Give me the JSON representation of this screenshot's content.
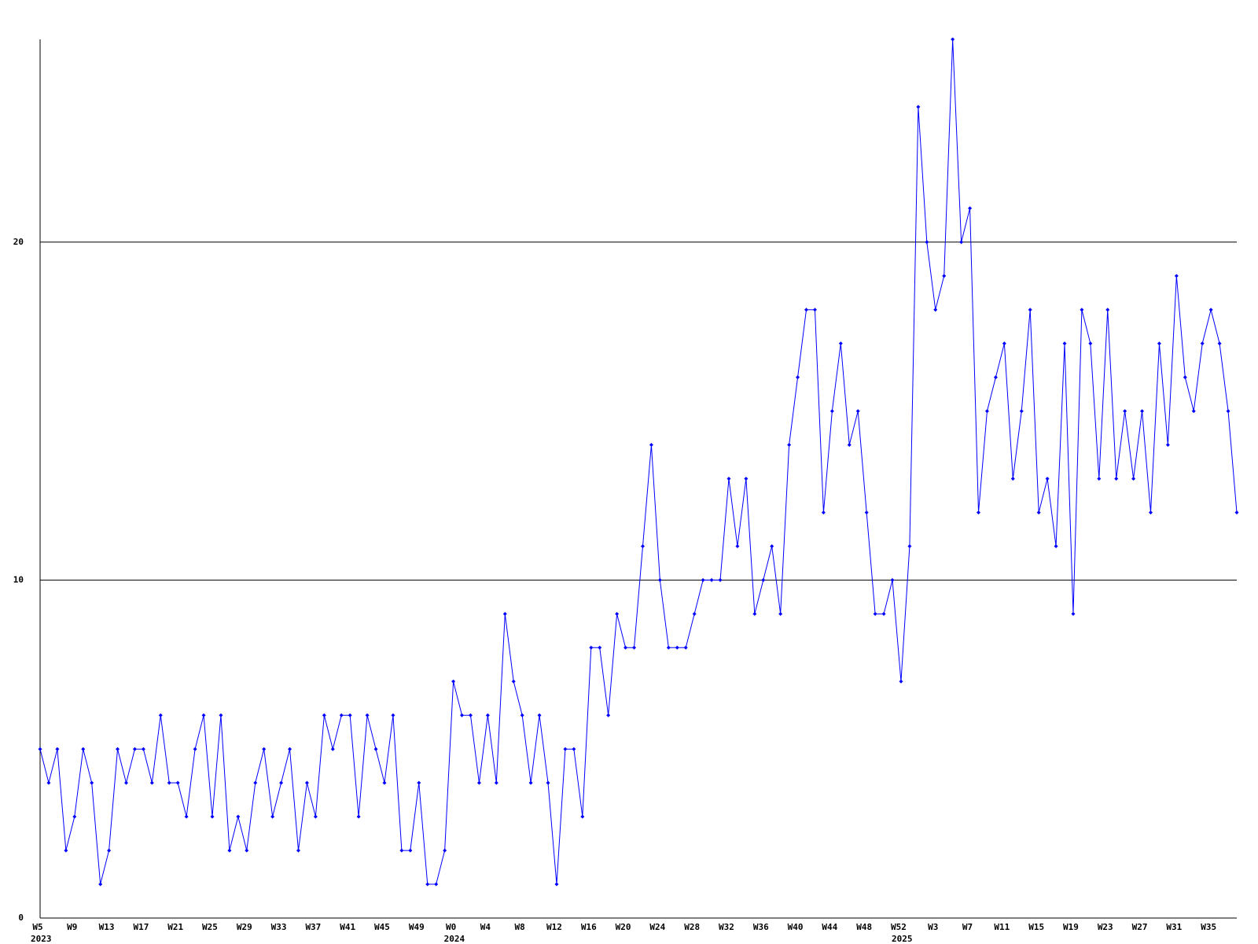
{
  "chart_data": {
    "type": "line",
    "color": "#0000ff",
    "ylim": [
      0,
      26
    ],
    "yticks": [
      0,
      10,
      20
    ],
    "grid": true,
    "categories": [
      "W5",
      null,
      null,
      null,
      "W9",
      null,
      null,
      null,
      "W13",
      null,
      null,
      null,
      "W17",
      null,
      null,
      null,
      "W21",
      null,
      null,
      null,
      "W25",
      null,
      null,
      null,
      "W29",
      null,
      null,
      null,
      "W33",
      null,
      null,
      null,
      "W37",
      null,
      null,
      null,
      "W41",
      null,
      null,
      null,
      "W45",
      null,
      null,
      null,
      "W49",
      null,
      null,
      null,
      "W0",
      null,
      null,
      null,
      "W4",
      null,
      null,
      null,
      "W8",
      null,
      null,
      null,
      "W12",
      null,
      null,
      null,
      "W16",
      null,
      null,
      null,
      "W20",
      null,
      null,
      null,
      "W24",
      null,
      null,
      null,
      "W28",
      null,
      null,
      null,
      "W32",
      null,
      null,
      null,
      "W36",
      null,
      null,
      null,
      "W40",
      null,
      null,
      null,
      "W44",
      null,
      null,
      null,
      "W48",
      null,
      null,
      null,
      "W52",
      null,
      null,
      null,
      "W3",
      null,
      null,
      null,
      "W7",
      null,
      null,
      null,
      "W11",
      null,
      null,
      null,
      "W15",
      null,
      null,
      null,
      "W19",
      null,
      null,
      null,
      "W23",
      null,
      null,
      null,
      "W27",
      null,
      null,
      null,
      "W31",
      null,
      null,
      null,
      "W35",
      null,
      null,
      null
    ],
    "category_years": [
      "2023",
      null,
      null,
      null,
      null,
      null,
      null,
      null,
      null,
      null,
      null,
      null,
      null,
      null,
      null,
      null,
      null,
      null,
      null,
      null,
      null,
      null,
      null,
      null,
      null,
      null,
      null,
      null,
      null,
      null,
      null,
      null,
      null,
      null,
      null,
      null,
      null,
      null,
      null,
      null,
      null,
      null,
      null,
      null,
      null,
      null,
      null,
      null,
      "2024",
      null,
      null,
      null,
      null,
      null,
      null,
      null,
      null,
      null,
      null,
      null,
      null,
      null,
      null,
      null,
      null,
      null,
      null,
      null,
      null,
      null,
      null,
      null,
      null,
      null,
      null,
      null,
      null,
      null,
      null,
      null,
      null,
      null,
      null,
      null,
      null,
      null,
      null,
      null,
      null,
      null,
      null,
      null,
      null,
      null,
      null,
      null,
      null,
      null,
      null,
      null,
      "2025",
      null,
      null,
      null,
      null,
      null,
      null,
      null,
      null,
      null,
      null,
      null,
      null,
      null,
      null,
      null,
      null,
      null,
      null,
      null,
      null,
      null,
      null,
      null,
      null,
      null,
      null,
      null,
      null,
      null,
      null,
      null,
      null,
      null,
      null,
      null,
      null,
      null,
      null,
      null
    ],
    "values": [
      5,
      4,
      5,
      2,
      3,
      5,
      4,
      1,
      2,
      5,
      4,
      5,
      5,
      4,
      6,
      4,
      4,
      3,
      5,
      6,
      3,
      6,
      2,
      3,
      2,
      4,
      5,
      3,
      4,
      5,
      2,
      4,
      3,
      6,
      5,
      6,
      6,
      3,
      6,
      5,
      4,
      6,
      2,
      2,
      4,
      1,
      1,
      2,
      7,
      6,
      6,
      4,
      6,
      4,
      9,
      7,
      6,
      4,
      6,
      4,
      1,
      5,
      5,
      3,
      8,
      8,
      6,
      9,
      8,
      8,
      11,
      14,
      10,
      8,
      8,
      8,
      9,
      10,
      10,
      10,
      13,
      11,
      13,
      9,
      10,
      11,
      9,
      14,
      16,
      18,
      18,
      12,
      15,
      17,
      14,
      15,
      12,
      9,
      9,
      10,
      7,
      11,
      24,
      20,
      18,
      19,
      26,
      20,
      21,
      12,
      15,
      16,
      17,
      13,
      15,
      18,
      12,
      13,
      11,
      17,
      9,
      18,
      17,
      13,
      18,
      13,
      15,
      13,
      15,
      12,
      17,
      14,
      19,
      16,
      15,
      17,
      18,
      17,
      15,
      12
    ]
  }
}
